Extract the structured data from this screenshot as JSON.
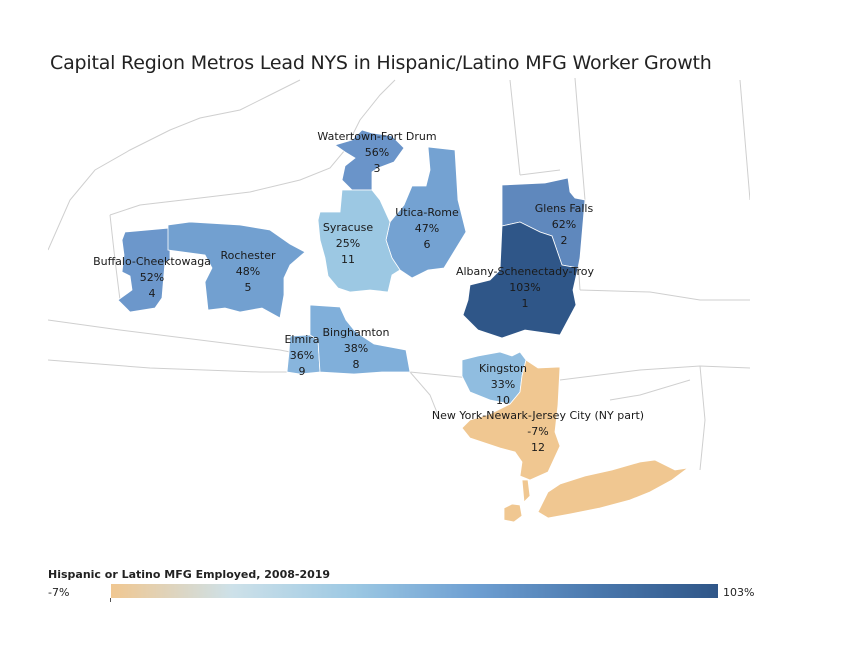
{
  "title": "Capital Region Metros Lead NYS in Hispanic/Latino MFG Worker Growth",
  "legend": {
    "title": "Hispanic or Latino MFG Employed, 2008-2019",
    "min_label": "-7%",
    "max_label": "103%",
    "colors": [
      "#f0c791",
      "#cde1e9",
      "#9cc8e3",
      "#6e9fd2",
      "#4a78ad",
      "#2f5688"
    ]
  },
  "regions": [
    {
      "id": "watertown",
      "name": "Watertown-Fort Drum",
      "pct": "56%",
      "rank": "3",
      "color": "#6a94c9"
    },
    {
      "id": "utica",
      "name": "Utica-Rome",
      "pct": "47%",
      "rank": "6",
      "color": "#74a2d2"
    },
    {
      "id": "syracuse",
      "name": "Syracuse",
      "pct": "25%",
      "rank": "11",
      "color": "#9cc8e3"
    },
    {
      "id": "glens-falls",
      "name": "Glens Falls",
      "pct": "62%",
      "rank": "2",
      "color": "#5f88bd"
    },
    {
      "id": "albany",
      "name": "Albany-Schenectady-Troy",
      "pct": "103%",
      "rank": "1",
      "color": "#2f5688"
    },
    {
      "id": "buffalo",
      "name": "Buffalo-Cheektowaga",
      "pct": "52%",
      "rank": "4",
      "color": "#6c97cb"
    },
    {
      "id": "rochester",
      "name": "Rochester",
      "pct": "48%",
      "rank": "5",
      "color": "#72a0d0"
    },
    {
      "id": "elmira",
      "name": "Elmira",
      "pct": "36%",
      "rank": "9",
      "color": "#88b5dd"
    },
    {
      "id": "binghamton",
      "name": "Binghamton",
      "pct": "38%",
      "rank": "8",
      "color": "#80afda"
    },
    {
      "id": "kingston",
      "name": "Kingston",
      "pct": "33%",
      "rank": "10",
      "color": "#90bde0"
    },
    {
      "id": "nyc",
      "name": "New York-Newark-Jersey City (NY part)",
      "pct": "-7%",
      "rank": "12",
      "color": "#f0c791"
    }
  ]
}
